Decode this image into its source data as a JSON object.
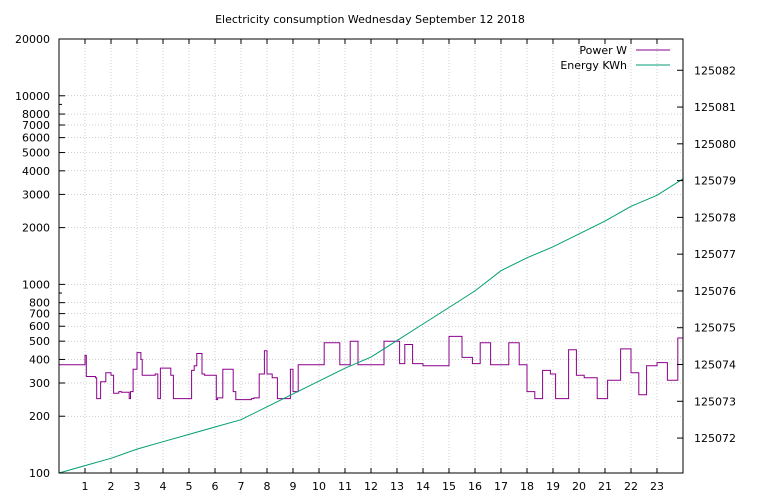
{
  "chart_data": {
    "type": "line",
    "title": "Electricity consumption Wednesday September 12 2018",
    "xlabel": "",
    "ylabel": "",
    "y2label": "",
    "grid": true,
    "legend_placement": "top-right",
    "x_range": [
      0,
      24
    ],
    "x_ticks": [
      1,
      2,
      3,
      4,
      5,
      6,
      7,
      8,
      9,
      10,
      11,
      12,
      13,
      14,
      15,
      16,
      17,
      18,
      19,
      20,
      21,
      22,
      23
    ],
    "y_scale": "log",
    "y_range": [
      100,
      20000
    ],
    "y_ticks": [
      {
        "v": 100,
        "label": "100"
      },
      {
        "v": 200,
        "label": "200"
      },
      {
        "v": 300,
        "label": "300"
      },
      {
        "v": 400,
        "label": "400"
      },
      {
        "v": 500,
        "label": "500"
      },
      {
        "v": 600,
        "label": "600"
      },
      {
        "v": 700,
        "label": "700"
      },
      {
        "v": 800,
        "label": "800"
      },
      {
        "v": 1000,
        "label": "1000"
      },
      {
        "v": 2000,
        "label": "2000"
      },
      {
        "v": 3000,
        "label": "3000"
      },
      {
        "v": 4000,
        "label": "4000"
      },
      {
        "v": 5000,
        "label": "5000"
      },
      {
        "v": 6000,
        "label": "6000"
      },
      {
        "v": 7000,
        "label": "7000"
      },
      {
        "v": 8000,
        "label": "8000"
      },
      {
        "v": 10000,
        "label": "10000"
      },
      {
        "v": 20000,
        "label": "20000"
      }
    ],
    "y2_range": [
      125071.05,
      125082.85
    ],
    "y2_ticks": [
      125072,
      125073,
      125074,
      125075,
      125076,
      125077,
      125078,
      125079,
      125080,
      125081,
      125082
    ],
    "series": [
      {
        "name": "Power W",
        "axis": "left",
        "color": "#8b008b",
        "x": [
          0,
          1,
          1.05,
          1.4,
          1.45,
          1.6,
          1.8,
          2.0,
          2.1,
          2.3,
          2.4,
          2.7,
          2.75,
          2.85,
          3.0,
          3.15,
          3.2,
          3.5,
          3.7,
          3.8,
          3.9,
          4.3,
          4.4,
          4.6,
          5.0,
          5.1,
          5.2,
          5.3,
          5.5,
          5.6,
          5.9,
          6.05,
          6.1,
          6.3,
          6.5,
          6.7,
          6.8,
          7.3,
          7.4,
          7.5,
          7.7,
          7.9,
          8.0,
          8.2,
          8.4,
          8.6,
          8.9,
          9.0,
          9.2,
          9.5,
          9.8,
          10.2,
          10.6,
          10.8,
          11.2,
          11.5,
          12.0,
          12.5,
          12.8,
          13.1,
          13.3,
          13.6,
          14.0,
          14.6,
          15.0,
          15.3,
          15.5,
          15.9,
          16.2,
          16.6,
          17.0,
          17.3,
          17.5,
          17.7,
          18.0,
          18.3,
          18.6,
          18.9,
          19.1,
          19.3,
          19.6,
          19.9,
          20.2,
          20.7,
          21.1,
          21.3,
          21.6,
          22.0,
          22.3,
          22.6,
          23.0,
          23.4,
          23.6,
          23.8,
          24.0
        ],
        "y": [
          375,
          420,
          325,
          320,
          248,
          305,
          340,
          330,
          265,
          270,
          268,
          248,
          270,
          355,
          435,
          400,
          330,
          330,
          335,
          248,
          360,
          330,
          248,
          248,
          248,
          350,
          370,
          430,
          335,
          330,
          330,
          245,
          250,
          355,
          355,
          270,
          245,
          245,
          248,
          250,
          335,
          445,
          335,
          320,
          248,
          248,
          355,
          270,
          375,
          375,
          375,
          490,
          490,
          375,
          500,
          375,
          375,
          500,
          500,
          380,
          480,
          380,
          370,
          370,
          530,
          530,
          410,
          380,
          490,
          375,
          375,
          490,
          490,
          375,
          270,
          248,
          350,
          335,
          248,
          248,
          450,
          330,
          320,
          248,
          310,
          310,
          455,
          340,
          260,
          370,
          385,
          310,
          310,
          520,
          400
        ]
      },
      {
        "name": "Energy KWh",
        "axis": "right",
        "color": "#009e73",
        "x": [
          0,
          1,
          2,
          3,
          4,
          5,
          6,
          7,
          8,
          9,
          10,
          11,
          12,
          13,
          14,
          15,
          16,
          17,
          18,
          19,
          20,
          21,
          22,
          23,
          24
        ],
        "y": [
          125071.05,
          125071.25,
          125071.45,
          125071.7,
          125071.9,
          125072.1,
          125072.3,
          125072.5,
          125072.85,
          125073.2,
          125073.55,
          125073.9,
          125074.2,
          125074.65,
          125075.1,
          125075.55,
          125076.0,
          125076.55,
          125076.9,
          125077.2,
          125077.55,
          125077.9,
          125078.3,
          125078.6,
          125079.05
        ]
      }
    ]
  }
}
